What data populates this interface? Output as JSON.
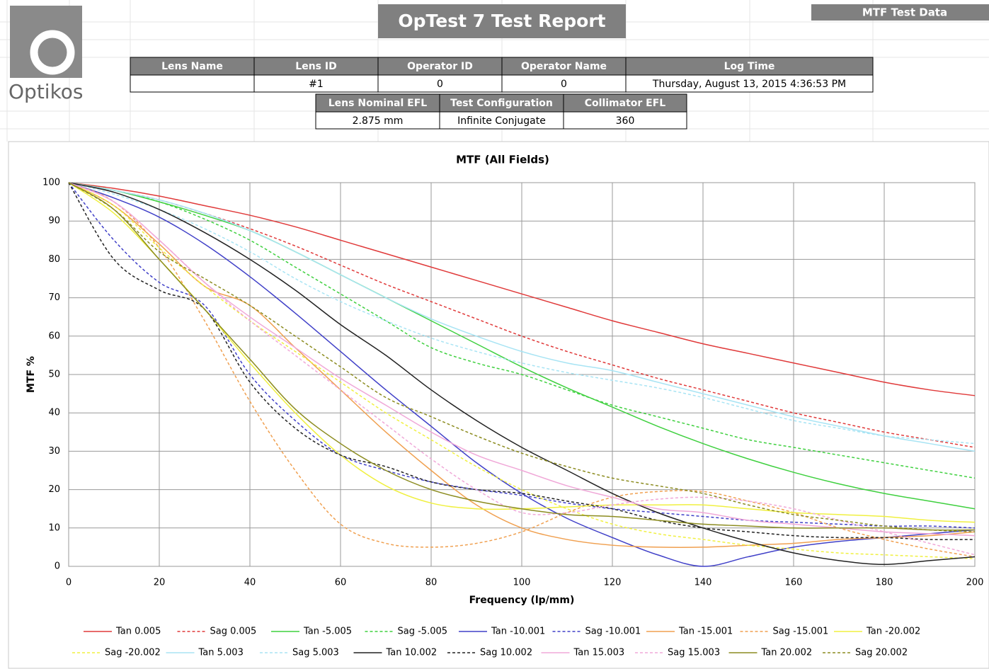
{
  "header": {
    "logo": "Optikos",
    "title": "OpTest 7 Test Report",
    "tab": "MTF Test Data"
  },
  "table1": {
    "headers": [
      "Lens Name",
      "Lens ID",
      "Operator ID",
      "Operator Name",
      "Log Time"
    ],
    "values": {
      "1": "#1",
      "2": "0",
      "3": "0",
      "4": "Thursday, August 13, 2015 4:36:53 PM"
    }
  },
  "table2": {
    "headers": [
      "Lens Nominal EFL",
      "Test Configuration",
      "Collimator EFL"
    ],
    "values": [
      "2.875 mm",
      "Infinite Conjugate",
      "360"
    ]
  },
  "chart_data": {
    "type": "line",
    "title": "MTF (All Fields)",
    "x_label": "Frequency (lp/mm)",
    "y_label": "MTF %",
    "x": [
      0,
      10,
      20,
      30,
      40,
      50,
      60,
      70,
      80,
      90,
      100,
      110,
      120,
      130,
      140,
      150,
      160,
      170,
      180,
      190,
      200
    ],
    "xlim": [
      0,
      200
    ],
    "xticks": [
      0,
      20,
      40,
      60,
      80,
      100,
      120,
      140,
      160,
      180,
      200
    ],
    "ylim": [
      0,
      100
    ],
    "yticks": [
      0,
      10,
      20,
      30,
      40,
      50,
      60,
      70,
      80,
      90,
      100
    ],
    "grid": true,
    "legend": "bottom",
    "series": [
      {
        "name": "Tan 0.005",
        "color": "#e03a3a",
        "dashed": false,
        "values": [
          100,
          98.5,
          96.5,
          94,
          91.5,
          88.5,
          85,
          81.5,
          78,
          74.5,
          71,
          67.5,
          64,
          61,
          58,
          55.5,
          53,
          50.5,
          48,
          46,
          44.5
        ]
      },
      {
        "name": "Sag 0.005",
        "color": "#e03a3a",
        "dashed": true,
        "values": [
          100,
          98,
          95.5,
          92,
          88,
          83.5,
          78.5,
          73.5,
          69,
          64.5,
          60,
          56,
          52.5,
          49,
          46,
          43,
          40,
          37.5,
          35,
          33,
          31
        ]
      },
      {
        "name": "Tan -5.005",
        "color": "#3fd03f",
        "dashed": false,
        "values": [
          100,
          98,
          95,
          91.5,
          87.5,
          82,
          76,
          70,
          64,
          58,
          52,
          46.5,
          41.5,
          36.5,
          32,
          28,
          24.5,
          21.5,
          19,
          17,
          15
        ]
      },
      {
        "name": "Sag -5.005",
        "color": "#3fd03f",
        "dashed": true,
        "values": [
          100,
          98,
          95,
          90.5,
          85,
          78,
          71,
          64,
          57,
          53,
          50,
          46,
          42,
          39,
          36,
          33,
          31,
          29,
          27,
          25,
          23
        ]
      },
      {
        "name": "Tan -10.001",
        "color": "#4040c8",
        "dashed": false,
        "values": [
          100,
          96,
          91,
          84,
          75.5,
          66,
          56,
          46,
          36.5,
          27,
          19,
          12.5,
          7.5,
          3,
          0,
          2.5,
          5,
          6.5,
          7.5,
          8.5,
          9.5
        ]
      },
      {
        "name": "Sag -10.001",
        "color": "#4040c8",
        "dashed": true,
        "values": [
          100,
          85,
          74,
          68,
          50,
          38,
          29,
          25,
          22,
          20,
          18.5,
          16.5,
          15,
          14,
          13,
          12,
          11.5,
          11,
          10.5,
          10.5,
          10
        ]
      },
      {
        "name": "Tan -15.001",
        "color": "#f0a050",
        "dashed": false,
        "values": [
          100,
          94,
          84,
          73,
          68,
          57,
          46,
          35,
          25,
          16,
          10,
          7,
          5.5,
          5,
          5,
          5.5,
          6,
          7,
          7.5,
          8,
          9
        ]
      },
      {
        "name": "Sag -15.001",
        "color": "#f0a050",
        "dashed": true,
        "values": [
          100,
          95,
          83,
          64,
          43,
          25,
          11,
          6,
          5,
          6,
          9,
          14,
          18,
          19.5,
          19.5,
          17,
          14,
          10,
          7,
          4.5,
          2.5
        ]
      },
      {
        "name": "Tan -20.002",
        "color": "#f0f040",
        "dashed": false,
        "values": [
          100,
          92,
          80,
          67,
          53,
          40,
          29,
          21,
          16.5,
          15,
          15,
          15.5,
          16,
          16,
          16,
          15,
          14,
          13.5,
          13,
          12,
          11.5
        ]
      },
      {
        "name": "Sag -20.002",
        "color": "#f0f040",
        "dashed": true,
        "values": [
          100,
          94,
          83,
          73,
          64,
          56,
          48,
          40,
          33,
          26,
          20,
          15,
          11,
          8.5,
          7,
          5.5,
          4.5,
          3.5,
          3,
          2.5,
          2
        ]
      },
      {
        "name": "Tan 5.003",
        "color": "#a8e4f4",
        "dashed": false,
        "values": [
          100,
          98,
          95.5,
          92,
          87.5,
          82,
          76,
          70,
          64.5,
          60,
          56,
          53,
          51,
          48,
          45,
          42,
          39,
          36.5,
          34,
          32,
          30
        ]
      },
      {
        "name": "Sag 5.003",
        "color": "#a8e4f4",
        "dashed": true,
        "values": [
          100,
          97,
          93,
          88,
          82,
          75,
          69,
          64,
          59.5,
          56,
          53,
          50.5,
          48.5,
          46.5,
          44,
          41,
          38,
          36,
          34,
          33,
          32
        ]
      },
      {
        "name": "Tan 10.002",
        "color": "#222222",
        "dashed": false,
        "values": [
          100,
          97.5,
          93,
          87,
          80,
          72,
          63,
          55,
          46,
          38,
          31,
          25,
          19,
          14,
          10,
          6.5,
          3.5,
          1.5,
          0.5,
          1.5,
          2.5
        ]
      },
      {
        "name": "Sag 10.002",
        "color": "#222222",
        "dashed": true,
        "values": [
          100,
          80,
          72,
          67,
          48,
          36,
          29,
          26,
          22,
          20,
          19,
          17,
          15,
          12,
          10,
          9,
          8,
          7.5,
          7.5,
          7,
          7
        ]
      },
      {
        "name": "Tan 15.003",
        "color": "#f0a8d8",
        "dashed": false,
        "values": [
          100,
          95,
          85,
          74,
          65,
          57,
          49,
          42,
          35,
          29,
          25,
          21,
          18,
          15,
          14,
          12,
          11,
          10,
          9,
          8.5,
          8
        ]
      },
      {
        "name": "Sag 15.003",
        "color": "#f0a8d8",
        "dashed": true,
        "values": [
          100,
          95,
          85,
          74,
          64,
          55,
          46,
          37,
          28,
          20,
          14,
          14,
          16,
          17.5,
          18,
          17,
          15,
          12,
          9,
          6,
          3
        ]
      },
      {
        "name": "Tan 20.002",
        "color": "#8c8c20",
        "dashed": false,
        "values": [
          100,
          93,
          80,
          67,
          54,
          41,
          32,
          25,
          20,
          17,
          15,
          13.5,
          13,
          12,
          11,
          10.5,
          10,
          10,
          10,
          9.5,
          9.5
        ]
      },
      {
        "name": "Sag 20.002",
        "color": "#8c8c20",
        "dashed": true,
        "values": [
          100,
          93,
          82,
          75,
          68,
          60,
          52,
          44,
          39,
          34,
          29.5,
          26,
          23,
          21,
          19,
          16,
          13.5,
          12,
          10.5,
          9.5,
          9
        ]
      }
    ]
  }
}
